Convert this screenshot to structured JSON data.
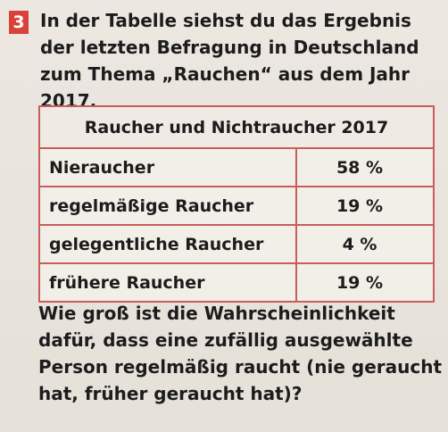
{
  "task": {
    "number": "3",
    "intro": "In der Tabelle siehst du das Ergebnis der letzten Befragung in Deutschland zum Thema „Rauchen“ aus dem Jahr 2017."
  },
  "table": {
    "title": "Raucher und Nichtraucher 2017",
    "rows": [
      {
        "label": "Nieraucher",
        "value": "58 %"
      },
      {
        "label": "regelmäßige Raucher",
        "value": "19 %"
      },
      {
        "label": "gelegentliche Raucher",
        "value": "4 %"
      },
      {
        "label": "frühere Raucher",
        "value": "19 %"
      }
    ]
  },
  "question": "Wie groß ist die Wahrscheinlichkeit dafür, dass eine zufällig ausgewählte Person regelmäßig raucht (nie geraucht hat, früher geraucht hat)?"
}
